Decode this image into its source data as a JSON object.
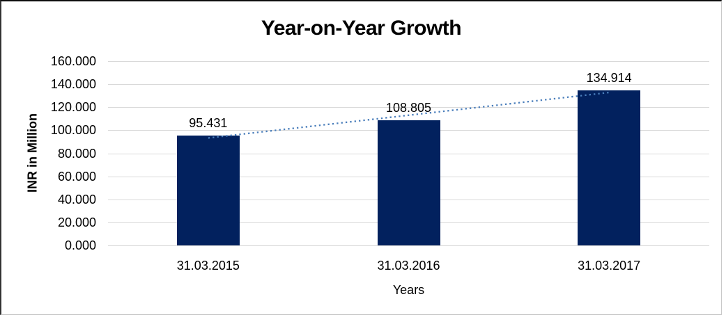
{
  "chart_data": {
    "type": "bar",
    "title": "Year-on-Year Growth",
    "xlabel": "Years",
    "ylabel": "INR in Million",
    "categories": [
      "31.03.2015",
      "31.03.2016",
      "31.03.2017"
    ],
    "values": [
      95.431,
      108.805,
      134.914
    ],
    "value_labels": [
      "95.431",
      "108.805",
      "134.914"
    ],
    "ylim": [
      0,
      160
    ],
    "ytick_step": 20,
    "ytick_labels_top_to_bottom": [
      "160.000",
      "140.000",
      "120.000",
      "100.000",
      "80.000",
      "60.000",
      "40.000",
      "20.000",
      "0.000"
    ],
    "grid": "horizontal",
    "legend": "none",
    "trendline": {
      "type": "linear",
      "style": "dotted",
      "fit_values_at_categories": [
        93.309,
        113.05,
        132.791
      ]
    },
    "colors": {
      "bar": "#02215e",
      "gridline": "#d9d9d9",
      "trendline": "#4a7ebb",
      "text": "#000000"
    }
  }
}
